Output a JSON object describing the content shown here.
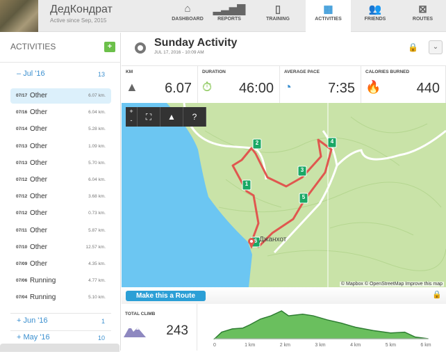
{
  "user": {
    "name": "ДедКондрат",
    "since": "Active since Sep, 2015"
  },
  "nav": [
    {
      "label": "DASHBOARD",
      "icon": "home-icon",
      "glyph": "⌂"
    },
    {
      "label": "REPORTS",
      "icon": "bar-chart-icon",
      "glyph": "▂▃▅▇"
    },
    {
      "label": "TRAINING",
      "icon": "clipboard-icon",
      "glyph": "▯"
    },
    {
      "label": "ACTIVITIES",
      "icon": "calendar-icon",
      "glyph": "▦",
      "active": true
    },
    {
      "label": "FRIENDS",
      "icon": "friends-icon",
      "glyph": "👥"
    },
    {
      "label": "ROUTES",
      "icon": "route-map-icon",
      "glyph": "⊠"
    }
  ],
  "sidebar": {
    "title": "ACTIVITIES",
    "add": "+",
    "months": [
      {
        "sign": "–",
        "label": "Jul '16",
        "count": "13",
        "expanded": true
      },
      {
        "sign": "+",
        "label": "Jun '16",
        "count": "1"
      },
      {
        "sign": "+",
        "label": "May '16",
        "count": "10"
      }
    ],
    "items": [
      {
        "date": "07/17",
        "type": "Other",
        "km": "6.07 km.",
        "selected": true
      },
      {
        "date": "07/16",
        "type": "Other",
        "km": "6.04 km."
      },
      {
        "date": "07/14",
        "type": "Other",
        "km": "5.28 km."
      },
      {
        "date": "07/13",
        "type": "Other",
        "km": "1.09 km."
      },
      {
        "date": "07/13",
        "type": "Other",
        "km": "5.70 km."
      },
      {
        "date": "07/12",
        "type": "Other",
        "km": "6.04 km."
      },
      {
        "date": "07/12",
        "type": "Other",
        "km": "3.68 km."
      },
      {
        "date": "07/12",
        "type": "Other",
        "km": "0.73 km."
      },
      {
        "date": "07/11",
        "type": "Other",
        "km": "5.87 km."
      },
      {
        "date": "07/10",
        "type": "Other",
        "km": "12.57 km."
      },
      {
        "date": "07/09",
        "type": "Other",
        "km": "4.35 km."
      },
      {
        "date": "07/06",
        "type": "Running",
        "km": "4.77 km."
      },
      {
        "date": "07/04",
        "type": "Running",
        "km": "5.10 km."
      }
    ]
  },
  "activity": {
    "title": "Sunday Activity",
    "date": "JUL 17, 2016  -  10:09 AM",
    "dropdown": "⌄",
    "lock": "🔒"
  },
  "stats": [
    {
      "label": "KM",
      "value": "6.07",
      "icon": "road-icon",
      "glyph": "▲",
      "color": "#666666"
    },
    {
      "label": "DURATION",
      "value": "46:00",
      "icon": "stopwatch-icon",
      "glyph": "⏱",
      "color": "#7bc043"
    },
    {
      "label": "AVERAGE PACE",
      "value": "7:35",
      "icon": "speedometer-icon",
      "glyph": "◔",
      "color": "#3a8fcf"
    },
    {
      "label": "CALORIES BURNED",
      "value": "440",
      "icon": "flame-icon",
      "glyph": "🔥",
      "color": "#f5a623"
    }
  ],
  "map": {
    "controls": {
      "zoom_in": "+",
      "zoom_out": "-",
      "fullscreen": "⛶",
      "terrain": "▲",
      "help": "?"
    },
    "place": "Джанхот",
    "markers": [
      "1",
      "2",
      "3",
      "4",
      "5",
      "6"
    ],
    "attribution": "© Mapbox © OpenStreetMap Improve this map",
    "route_color": "#e0574f",
    "sea_color": "#6cc6f2"
  },
  "route_button": "Make this a Route",
  "climb": {
    "label": "TOTAL CLIMB",
    "value": "243"
  },
  "chart_data": {
    "type": "area",
    "x_ticks": [
      "0",
      "1 km",
      "2 km",
      "3 km",
      "4 km",
      "5 km",
      "6 km"
    ],
    "xlim": [
      0,
      6.07
    ],
    "x": [
      0,
      0.2,
      0.5,
      0.8,
      1.0,
      1.3,
      1.6,
      1.9,
      2.1,
      2.5,
      2.8,
      3.2,
      3.6,
      4.0,
      4.5,
      5.0,
      5.4,
      5.7,
      6.07
    ],
    "y": [
      0,
      40,
      60,
      65,
      85,
      120,
      140,
      170,
      140,
      150,
      140,
      115,
      95,
      70,
      50,
      35,
      40,
      10,
      0
    ],
    "fill": "#6abf5e",
    "stroke": "#2e7d32"
  }
}
